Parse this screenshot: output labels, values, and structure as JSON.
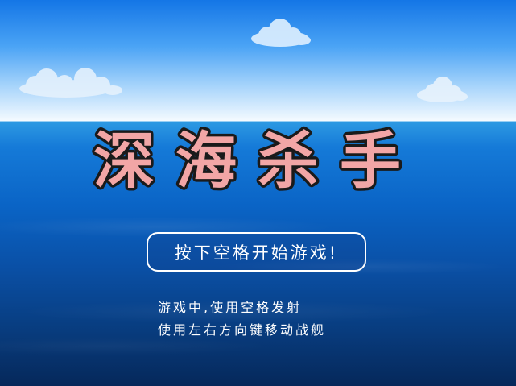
{
  "title": "深海杀手",
  "start_button": {
    "label": "按下空格开始游戏!"
  },
  "instructions": {
    "line1": "游戏中,使用空格发射",
    "line2": "使用左右方向键移动战舰"
  },
  "colors": {
    "title_fill": "#f2a6a6",
    "title_stroke": "#1a1a1a",
    "text": "#ffffff"
  }
}
